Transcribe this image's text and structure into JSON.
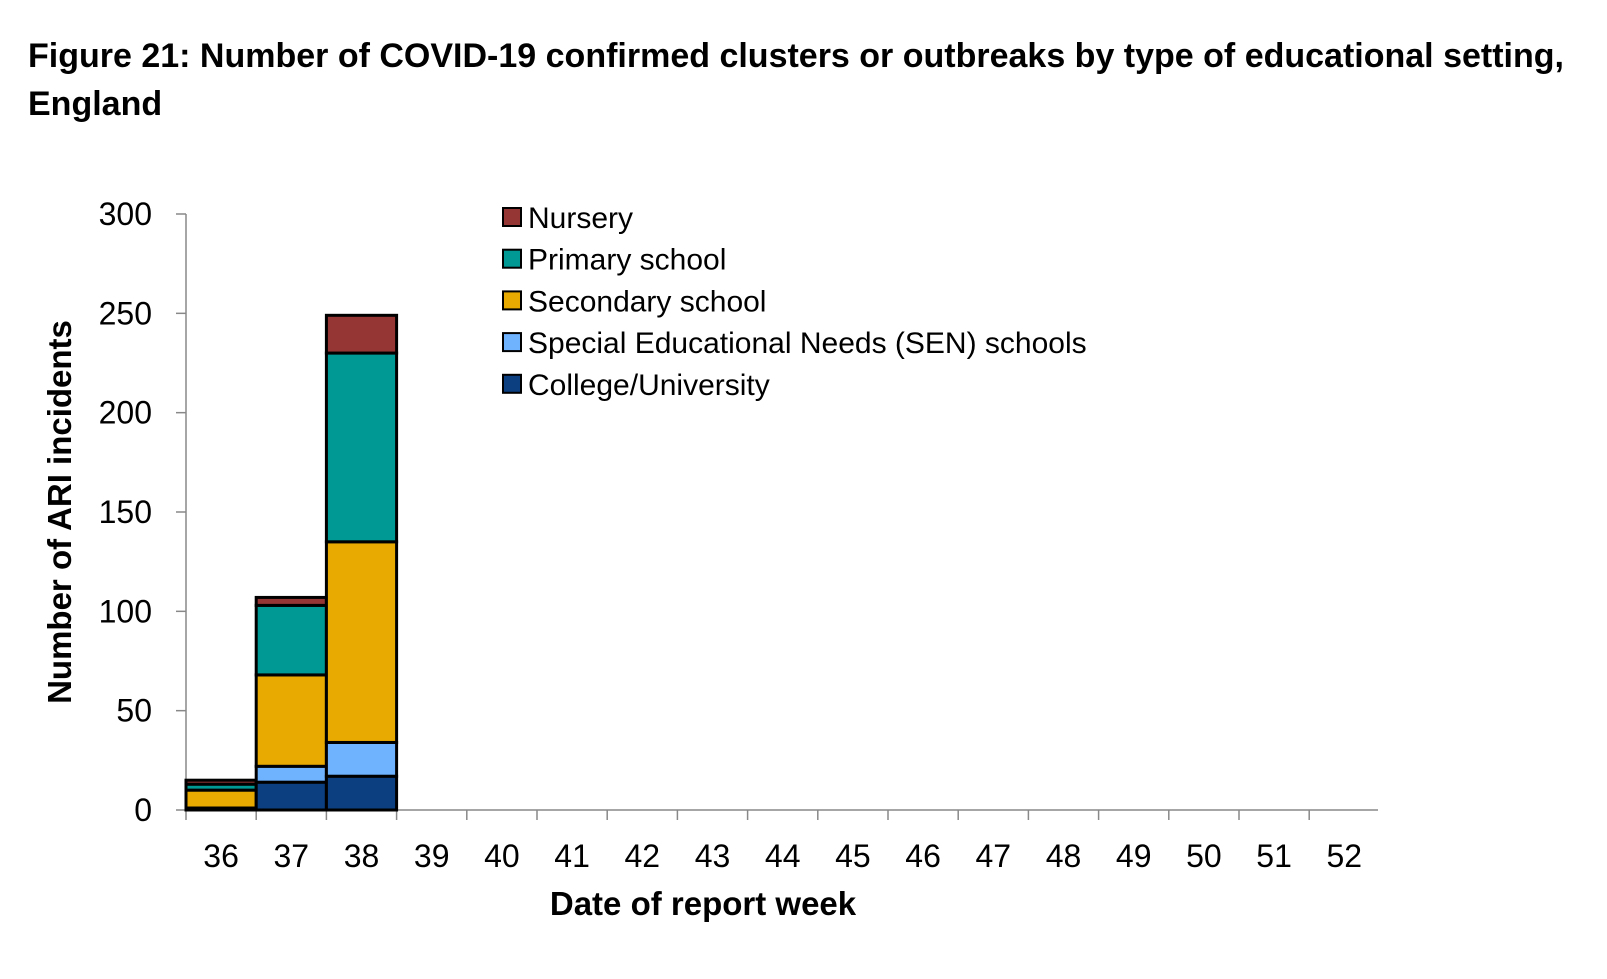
{
  "title": "Figure 21: Number of COVID-19 confirmed clusters or outbreaks by type of educational setting, England",
  "chart_data": {
    "type": "bar",
    "stacked": true,
    "xlabel": "Date of report week",
    "ylabel": "Number of ARI incidents",
    "ylim": [
      0,
      300
    ],
    "yticks": [
      0,
      50,
      100,
      150,
      200,
      250,
      300
    ],
    "categories": [
      "36",
      "37",
      "38",
      "39",
      "40",
      "41",
      "42",
      "43",
      "44",
      "45",
      "46",
      "47",
      "48",
      "49",
      "50",
      "51",
      "52"
    ],
    "series": [
      {
        "name": "College/University",
        "color": "#0b3f7f",
        "values": [
          1,
          14,
          17,
          0,
          0,
          0,
          0,
          0,
          0,
          0,
          0,
          0,
          0,
          0,
          0,
          0,
          0
        ]
      },
      {
        "name": "Special Educational Needs (SEN) schools",
        "color": "#6fb3ff",
        "values": [
          0,
          8,
          17,
          0,
          0,
          0,
          0,
          0,
          0,
          0,
          0,
          0,
          0,
          0,
          0,
          0,
          0
        ]
      },
      {
        "name": "Secondary school",
        "color": "#e8a900",
        "values": [
          9,
          46,
          101,
          0,
          0,
          0,
          0,
          0,
          0,
          0,
          0,
          0,
          0,
          0,
          0,
          0,
          0
        ]
      },
      {
        "name": "Primary school",
        "color": "#009994",
        "values": [
          3,
          35,
          95,
          0,
          0,
          0,
          0,
          0,
          0,
          0,
          0,
          0,
          0,
          0,
          0,
          0,
          0
        ]
      },
      {
        "name": "Nursery",
        "color": "#963634",
        "values": [
          2,
          4,
          19,
          0,
          0,
          0,
          0,
          0,
          0,
          0,
          0,
          0,
          0,
          0,
          0,
          0,
          0
        ]
      }
    ],
    "legend_order": [
      "Nursery",
      "Primary school",
      "Secondary school",
      "Special Educational Needs (SEN) schools",
      "College/University"
    ],
    "legend_position": "top-center",
    "grid": false
  }
}
